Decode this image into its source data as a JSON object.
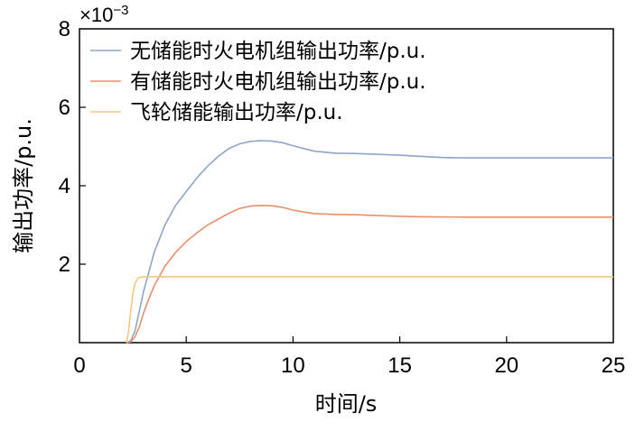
{
  "chart_data": {
    "type": "line",
    "xlabel": "时间/s",
    "ylabel": "输出功率/p.u.",
    "y_scale_factor": "×10",
    "y_scale_exponent": "−3",
    "xlim": [
      0,
      25
    ],
    "ylim": [
      0,
      8
    ],
    "xticks": [
      0,
      5,
      10,
      15,
      20,
      25
    ],
    "yticks": [
      2,
      4,
      6,
      8
    ],
    "grid": false,
    "legend_position": "top-left",
    "series": [
      {
        "name": "无储能时火电机组输出功率/p.u.",
        "color": "#8ea5c8",
        "points": [
          [
            2.2,
            0
          ],
          [
            2.4,
            0.05
          ],
          [
            2.6,
            0.3
          ],
          [
            2.8,
            0.8
          ],
          [
            3.0,
            1.3
          ],
          [
            3.2,
            1.7
          ],
          [
            3.5,
            2.3
          ],
          [
            4.0,
            3.0
          ],
          [
            4.5,
            3.5
          ],
          [
            5.0,
            3.85
          ],
          [
            5.5,
            4.2
          ],
          [
            6.0,
            4.5
          ],
          [
            6.5,
            4.75
          ],
          [
            7.0,
            4.95
          ],
          [
            7.5,
            5.07
          ],
          [
            8.0,
            5.13
          ],
          [
            8.5,
            5.15
          ],
          [
            9.0,
            5.14
          ],
          [
            9.5,
            5.1
          ],
          [
            10.0,
            5.02
          ],
          [
            10.5,
            4.95
          ],
          [
            11.0,
            4.88
          ],
          [
            12.0,
            4.83
          ],
          [
            13.0,
            4.82
          ],
          [
            14.0,
            4.8
          ],
          [
            15.0,
            4.78
          ],
          [
            16.0,
            4.75
          ],
          [
            17.0,
            4.72
          ],
          [
            18.0,
            4.71
          ],
          [
            20.0,
            4.71
          ],
          [
            22.0,
            4.71
          ],
          [
            25.0,
            4.71
          ]
        ]
      },
      {
        "name": "有储能时火电机组输出功率/p.u.",
        "color": "#e8906c",
        "points": [
          [
            2.2,
            0
          ],
          [
            2.4,
            0.02
          ],
          [
            2.6,
            0.15
          ],
          [
            2.8,
            0.4
          ],
          [
            3.0,
            0.75
          ],
          [
            3.2,
            1.05
          ],
          [
            3.5,
            1.45
          ],
          [
            4.0,
            1.95
          ],
          [
            4.5,
            2.3
          ],
          [
            5.0,
            2.58
          ],
          [
            5.5,
            2.8
          ],
          [
            6.0,
            3.0
          ],
          [
            6.5,
            3.15
          ],
          [
            7.0,
            3.3
          ],
          [
            7.5,
            3.42
          ],
          [
            8.0,
            3.48
          ],
          [
            8.5,
            3.5
          ],
          [
            9.0,
            3.49
          ],
          [
            9.5,
            3.45
          ],
          [
            10.0,
            3.38
          ],
          [
            10.5,
            3.33
          ],
          [
            11.0,
            3.29
          ],
          [
            12.0,
            3.27
          ],
          [
            13.0,
            3.26
          ],
          [
            14.0,
            3.24
          ],
          [
            15.0,
            3.22
          ],
          [
            16.0,
            3.21
          ],
          [
            18.0,
            3.2
          ],
          [
            20.0,
            3.2
          ],
          [
            22.0,
            3.2
          ],
          [
            25.0,
            3.2
          ]
        ]
      },
      {
        "name": "飞轮储能输出功率/p.u.",
        "color": "#f2c77e",
        "points": [
          [
            2.2,
            0
          ],
          [
            2.3,
            0.3
          ],
          [
            2.4,
            0.8
          ],
          [
            2.5,
            1.25
          ],
          [
            2.6,
            1.5
          ],
          [
            2.7,
            1.62
          ],
          [
            2.8,
            1.66
          ],
          [
            3.0,
            1.68
          ],
          [
            4.0,
            1.68
          ],
          [
            10.0,
            1.68
          ],
          [
            15.0,
            1.68
          ],
          [
            20.0,
            1.68
          ],
          [
            25.0,
            1.68
          ]
        ]
      }
    ]
  }
}
